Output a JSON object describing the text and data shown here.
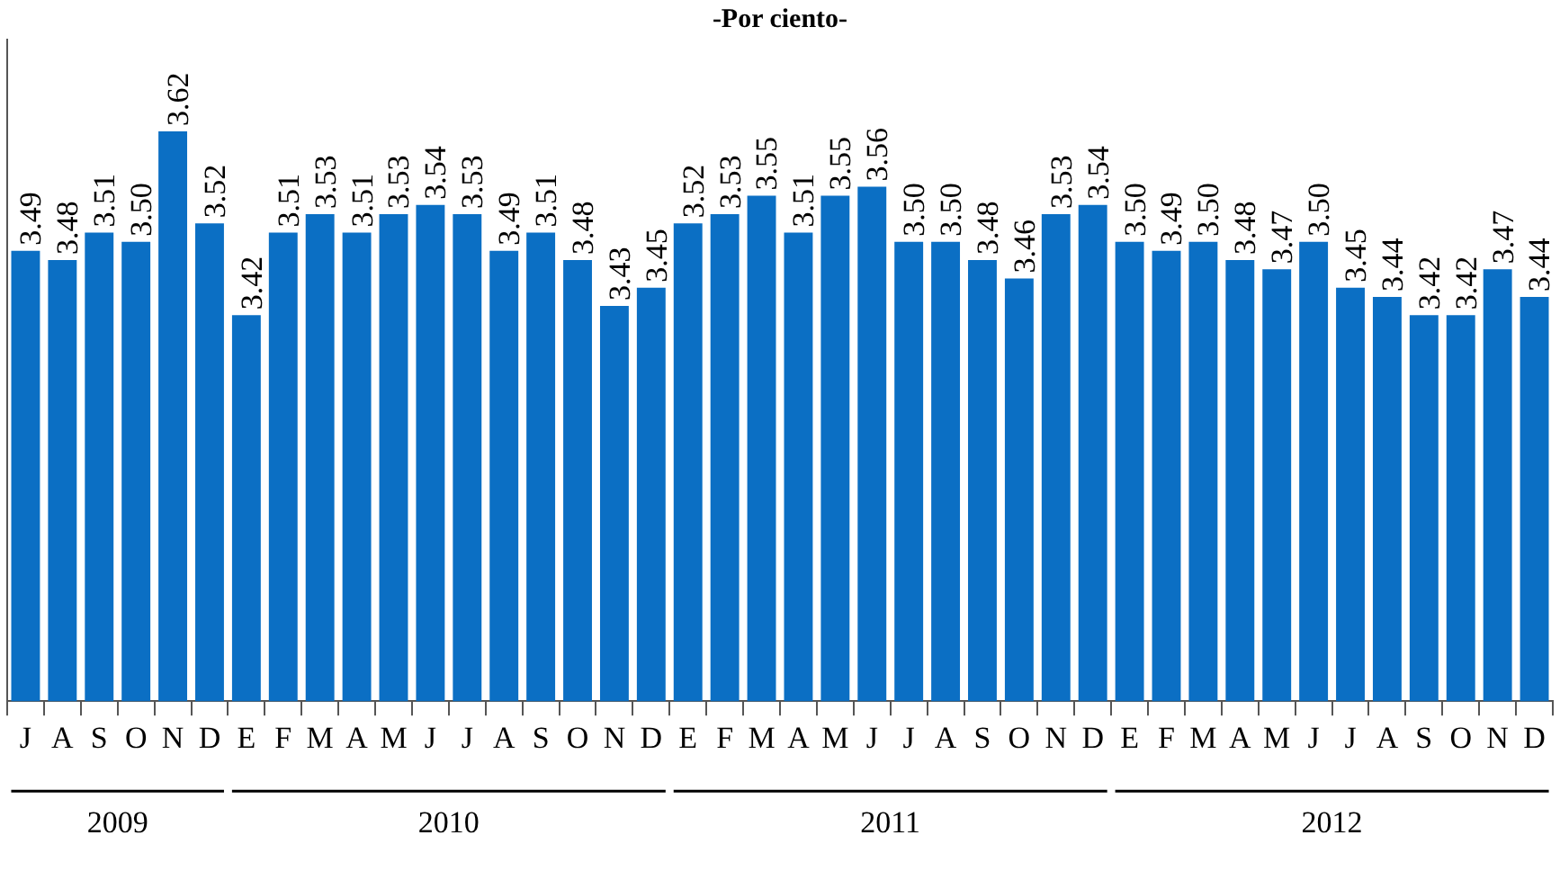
{
  "chart_data": {
    "type": "bar",
    "title": "-Por ciento-",
    "categories": [
      "J",
      "A",
      "S",
      "O",
      "N",
      "D",
      "E",
      "F",
      "M",
      "A",
      "M",
      "J",
      "J",
      "A",
      "S",
      "O",
      "N",
      "D",
      "E",
      "F",
      "M",
      "A",
      "M",
      "J",
      "J",
      "A",
      "S",
      "O",
      "N",
      "D",
      "E",
      "F",
      "M",
      "A",
      "M",
      "J",
      "J",
      "A",
      "S",
      "O",
      "N",
      "D"
    ],
    "values": [
      3.49,
      3.48,
      3.51,
      3.5,
      3.62,
      3.52,
      3.42,
      3.51,
      3.53,
      3.51,
      3.53,
      3.54,
      3.53,
      3.49,
      3.51,
      3.48,
      3.43,
      3.45,
      3.52,
      3.53,
      3.55,
      3.51,
      3.55,
      3.56,
      3.5,
      3.5,
      3.48,
      3.46,
      3.53,
      3.54,
      3.5,
      3.49,
      3.5,
      3.48,
      3.47,
      3.5,
      3.45,
      3.44,
      3.42,
      3.42,
      3.47,
      3.44
    ],
    "value_labels": [
      "3.49",
      "3.48",
      "3.51",
      "3.50",
      "3.62",
      "3.52",
      "3.42",
      "3.51",
      "3.53",
      "3.51",
      "3.53",
      "3.54",
      "3.53",
      "3.49",
      "3.51",
      "3.48",
      "3.43",
      "3.45",
      "3.52",
      "3.53",
      "3.55",
      "3.51",
      "3.55",
      "3.56",
      "3.50",
      "3.50",
      "3.48",
      "3.46",
      "3.53",
      "3.54",
      "3.50",
      "3.49",
      "3.50",
      "3.48",
      "3.47",
      "3.50",
      "3.45",
      "3.44",
      "3.42",
      "3.42",
      "3.47",
      "3.44"
    ],
    "color": "#0b6fc4",
    "ylim": [
      3.0,
      3.72
    ],
    "tick_labels": "x",
    "grid": false,
    "legend": false,
    "annotations": [
      "2009",
      "2010",
      "2011",
      "2012"
    ]
  }
}
